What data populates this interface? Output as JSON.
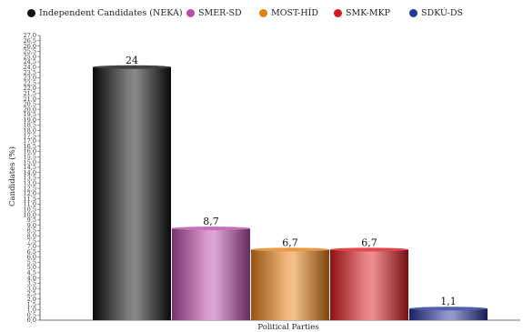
{
  "chart_data": {
    "type": "bar",
    "categories": [
      "Independent Candidates (NEKA)",
      "SMER-SD",
      "MOST-HÍD",
      "SMK-MKP",
      "SDKÚ-DS"
    ],
    "values": [
      24,
      8.7,
      6.7,
      6.7,
      1.1
    ],
    "value_labels": [
      "24",
      "8,7",
      "6,7",
      "6,7",
      "1,1"
    ],
    "colors": [
      "#111111",
      "#b94ca8",
      "#e57e14",
      "#d9191f",
      "#26369a"
    ],
    "xlabel": "Political Parties",
    "ylabel": "Candidates (%)",
    "ylim": [
      0,
      27
    ],
    "ytick_step": 0.5,
    "legend": "top",
    "grid": false
  },
  "legend_items": [
    {
      "label": "Independent Candidates (NEKA)",
      "color": "#111111"
    },
    {
      "label": "SMER-SD",
      "color": "#b94ca8"
    },
    {
      "label": "MOST-HÍD",
      "color": "#e57e14"
    },
    {
      "label": "SMK-MKP",
      "color": "#d9191f"
    },
    {
      "label": "SDKÚ-DS",
      "color": "#26369a"
    }
  ]
}
